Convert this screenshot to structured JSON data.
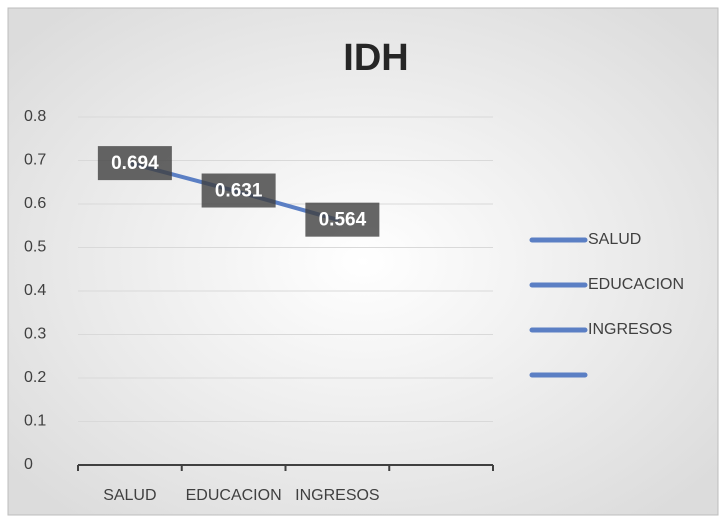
{
  "chart_data": {
    "type": "line",
    "title": "IDH",
    "categories": [
      "SALUD",
      "EDUCACION",
      "INGRESOS",
      null
    ],
    "values": [
      0.694,
      0.631,
      0.564,
      null
    ],
    "color": "#5b7fc4",
    "ylim": [
      0,
      0.8
    ],
    "yticks": [
      0,
      0.1,
      0.2,
      0.3,
      0.4,
      0.5,
      0.6,
      0.7,
      0.8
    ],
    "grid": true,
    "legend": "right"
  }
}
